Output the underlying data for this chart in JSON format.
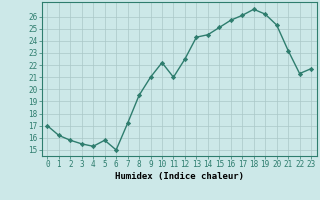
{
  "x": [
    0,
    1,
    2,
    3,
    4,
    5,
    6,
    7,
    8,
    9,
    10,
    11,
    12,
    13,
    14,
    15,
    16,
    17,
    18,
    19,
    20,
    21,
    22,
    23
  ],
  "y": [
    17.0,
    16.2,
    15.8,
    15.5,
    15.3,
    15.8,
    15.0,
    17.2,
    19.5,
    21.0,
    22.2,
    21.0,
    22.5,
    24.3,
    24.5,
    25.1,
    25.7,
    26.1,
    26.6,
    26.2,
    25.3,
    23.2,
    21.3,
    21.7
  ],
  "line_color": "#2e7d6e",
  "marker": "D",
  "marker_size": 2.2,
  "bg_color": "#cce8e8",
  "grid_color": "#aac8c8",
  "xlabel": "Humidex (Indice chaleur)",
  "xlim": [
    -0.5,
    23.5
  ],
  "ylim": [
    14.5,
    27.2
  ],
  "yticks": [
    15,
    16,
    17,
    18,
    19,
    20,
    21,
    22,
    23,
    24,
    25,
    26
  ],
  "xticks": [
    0,
    1,
    2,
    3,
    4,
    5,
    6,
    7,
    8,
    9,
    10,
    11,
    12,
    13,
    14,
    15,
    16,
    17,
    18,
    19,
    20,
    21,
    22,
    23
  ],
  "tick_fontsize": 5.5,
  "xlabel_fontsize": 6.5,
  "line_width": 1.0
}
